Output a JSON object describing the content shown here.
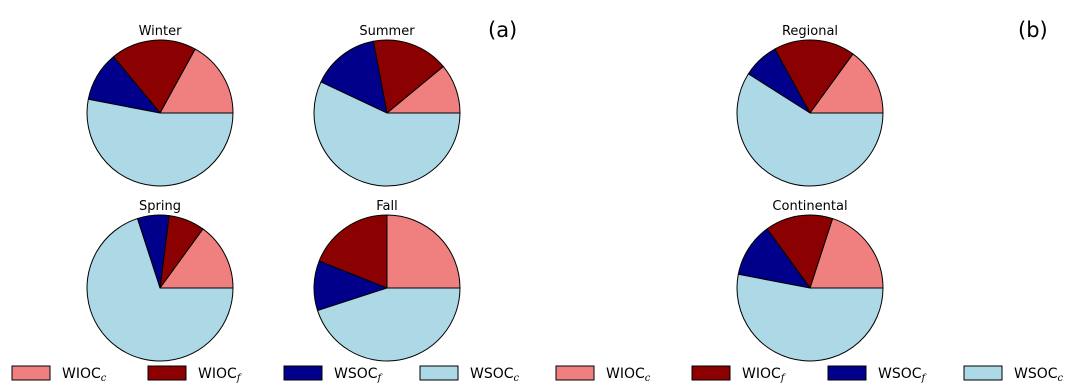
{
  "colors": {
    "WIOC_c": "#F08080",
    "WIOC_f": "#8B0000",
    "WSOC_f": "#00008B",
    "WSOC_c": "#ADD8E6",
    "edge": "#000000"
  },
  "panel_labels": [
    "(a)",
    "(b)"
  ],
  "chart_data": [
    {
      "type": "pie",
      "panel": "(a)",
      "title": "Winter",
      "categories": [
        "WIOC_c",
        "WIOC_f",
        "WSOC_f",
        "WSOC_c"
      ],
      "values": [
        17,
        19,
        11,
        53
      ]
    },
    {
      "type": "pie",
      "panel": "(a)",
      "title": "Summer",
      "categories": [
        "WIOC_c",
        "WIOC_f",
        "WSOC_f",
        "WSOC_c"
      ],
      "values": [
        11,
        17,
        15,
        57
      ]
    },
    {
      "type": "pie",
      "panel": "(a)",
      "title": "Spring",
      "categories": [
        "WIOC_c",
        "WIOC_f",
        "WSOC_f",
        "WSOC_c"
      ],
      "values": [
        15,
        8,
        7,
        70
      ]
    },
    {
      "type": "pie",
      "panel": "(a)",
      "title": "Fall",
      "categories": [
        "WIOC_c",
        "WIOC_f",
        "WSOC_f",
        "WSOC_c"
      ],
      "values": [
        25,
        19,
        11,
        45
      ]
    },
    {
      "type": "pie",
      "panel": "(b)",
      "title": "Regional",
      "categories": [
        "WIOC_c",
        "WIOC_f",
        "WSOC_f",
        "WSOC_c"
      ],
      "values": [
        15,
        18,
        8,
        59
      ]
    },
    {
      "type": "pie",
      "panel": "(b)",
      "title": "Continental",
      "categories": [
        "WIOC_c",
        "WIOC_f",
        "WSOC_f",
        "WSOC_c"
      ],
      "values": [
        20,
        15,
        12,
        53
      ]
    }
  ],
  "legend": [
    {
      "key": "WIOC_c",
      "base": "WIOC",
      "sub": "c"
    },
    {
      "key": "WIOC_f",
      "base": "WIOC",
      "sub": "f"
    },
    {
      "key": "WSOC_f",
      "base": "WSOC",
      "sub": "f"
    },
    {
      "key": "WSOC_c",
      "base": "WSOC",
      "sub": "c"
    },
    {
      "key": "WIOC_c",
      "base": "WIOC",
      "sub": "c"
    },
    {
      "key": "WIOC_f",
      "base": "WIOC",
      "sub": "f"
    },
    {
      "key": "WSOC_f",
      "base": "WSOC",
      "sub": "f"
    },
    {
      "key": "WSOC_c",
      "base": "WSOC",
      "sub": "c"
    }
  ]
}
